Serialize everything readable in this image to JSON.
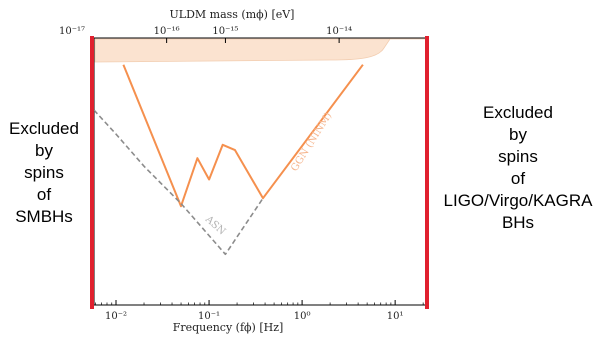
{
  "chart_data": {
    "type": "line",
    "xlabel": "Frequency (fϕ) [Hz]",
    "top_xlabel": "ULDM mass (mϕ) [eV]",
    "x_scale": "log",
    "xlim": [
      0.0058,
      22
    ],
    "y_scale": "log",
    "x_ticks": [
      {
        "value": 0.01,
        "label": "10⁻²"
      },
      {
        "value": 0.1,
        "label": "10⁻¹"
      },
      {
        "value": 1,
        "label": "10⁰"
      },
      {
        "value": 10,
        "label": "10¹"
      }
    ],
    "top_ticks": [
      {
        "value": 0.0036,
        "label": "10⁻¹⁷"
      },
      {
        "value": 0.035,
        "label": "10⁻¹⁶"
      },
      {
        "value": 0.15,
        "label": "10⁻¹⁵"
      },
      {
        "value": 2.5,
        "label": "10⁻¹⁴"
      }
    ],
    "series": [
      {
        "name": "",
        "style": "solid",
        "color": "#f5904e",
        "points": [
          [
            0.012,
            0.1
          ],
          [
            0.05,
            0.63
          ],
          [
            0.075,
            0.45
          ],
          [
            0.1,
            0.53
          ],
          [
            0.14,
            0.4
          ],
          [
            0.19,
            0.42
          ],
          [
            0.38,
            0.6
          ],
          [
            4.5,
            0.1
          ]
        ]
      },
      {
        "name": "",
        "style": "dashed",
        "color": "#8c8c8c",
        "points": [
          [
            0.0058,
            0.27
          ],
          [
            0.01,
            0.36
          ],
          [
            0.02,
            0.48
          ],
          [
            0.05,
            0.62
          ],
          [
            0.15,
            0.81
          ],
          [
            0.38,
            0.6
          ]
        ]
      }
    ],
    "excluded_band": {
      "color": "#fbe3d0"
    },
    "annotations": [
      {
        "text": "GGN (NINM)",
        "color": "#f5b58e"
      },
      {
        "text": "ASN",
        "color": "#b3b3b3"
      }
    ],
    "bounds_color": "#e0202e"
  },
  "left_label": [
    "Excluded",
    "by",
    "spins",
    "of",
    "SMBHs"
  ],
  "right_label": [
    "Excluded",
    "by",
    "spins",
    "of",
    "LIGO/Virgo/KAGRA",
    "BHs"
  ]
}
